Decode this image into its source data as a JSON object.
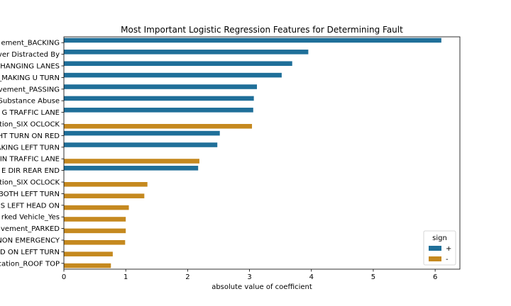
{
  "chart_data": {
    "type": "bar",
    "orientation": "horizontal",
    "title": "Most Important Logistic Regression Features for Determining Fault",
    "xlabel": "absolute value of coefficient",
    "ylabel": "",
    "xlim": [
      0,
      6.4
    ],
    "xticks": [
      0,
      1,
      2,
      3,
      4,
      5,
      6
    ],
    "grid": false,
    "legend": {
      "title": "sign",
      "placement": "bottom-right"
    },
    "series": [
      {
        "name": "+",
        "color": "#1f6f99"
      },
      {
        "name": "-",
        "color": "#c5891f"
      }
    ],
    "categories": [
      "ement_BACKING",
      "ver Distracted By",
      "HANGING LANES",
      "_MAKING U TURN",
      "vement_PASSING",
      "Substance Abuse",
      "G TRAFFIC LANE",
      "tion_SIX OCLOCK",
      "HT TURN ON RED",
      "AKING LEFT TURN",
      "IN TRAFFIC LANE",
      "E DIR REAR END",
      "ation_SIX OCLOCK",
      "BOTH LEFT TURN",
      "S LEFT HEAD ON",
      "rked Vehicle_Yes",
      "vement_PARKED",
      "NON EMERGENCY",
      "D ON LEFT TURN",
      "cation_ROOF TOP"
    ],
    "values": [
      {
        "pos": 6.1,
        "neg": null
      },
      {
        "pos": 3.95,
        "neg": null
      },
      {
        "pos": 3.69,
        "neg": null
      },
      {
        "pos": 3.52,
        "neg": null
      },
      {
        "pos": 3.12,
        "neg": null
      },
      {
        "pos": 3.07,
        "neg": null
      },
      {
        "pos": 3.06,
        "neg": null
      },
      {
        "pos": null,
        "neg": 3.04
      },
      {
        "pos": 2.52,
        "neg": null
      },
      {
        "pos": 2.48,
        "neg": null
      },
      {
        "pos": null,
        "neg": 2.19
      },
      {
        "pos": 2.17,
        "neg": null
      },
      {
        "pos": null,
        "neg": 1.35
      },
      {
        "pos": null,
        "neg": 1.3
      },
      {
        "pos": null,
        "neg": 1.05
      },
      {
        "pos": null,
        "neg": 1.0
      },
      {
        "pos": null,
        "neg": 1.0
      },
      {
        "pos": null,
        "neg": 0.99
      },
      {
        "pos": null,
        "neg": 0.79
      },
      {
        "pos": null,
        "neg": 0.76
      }
    ]
  }
}
